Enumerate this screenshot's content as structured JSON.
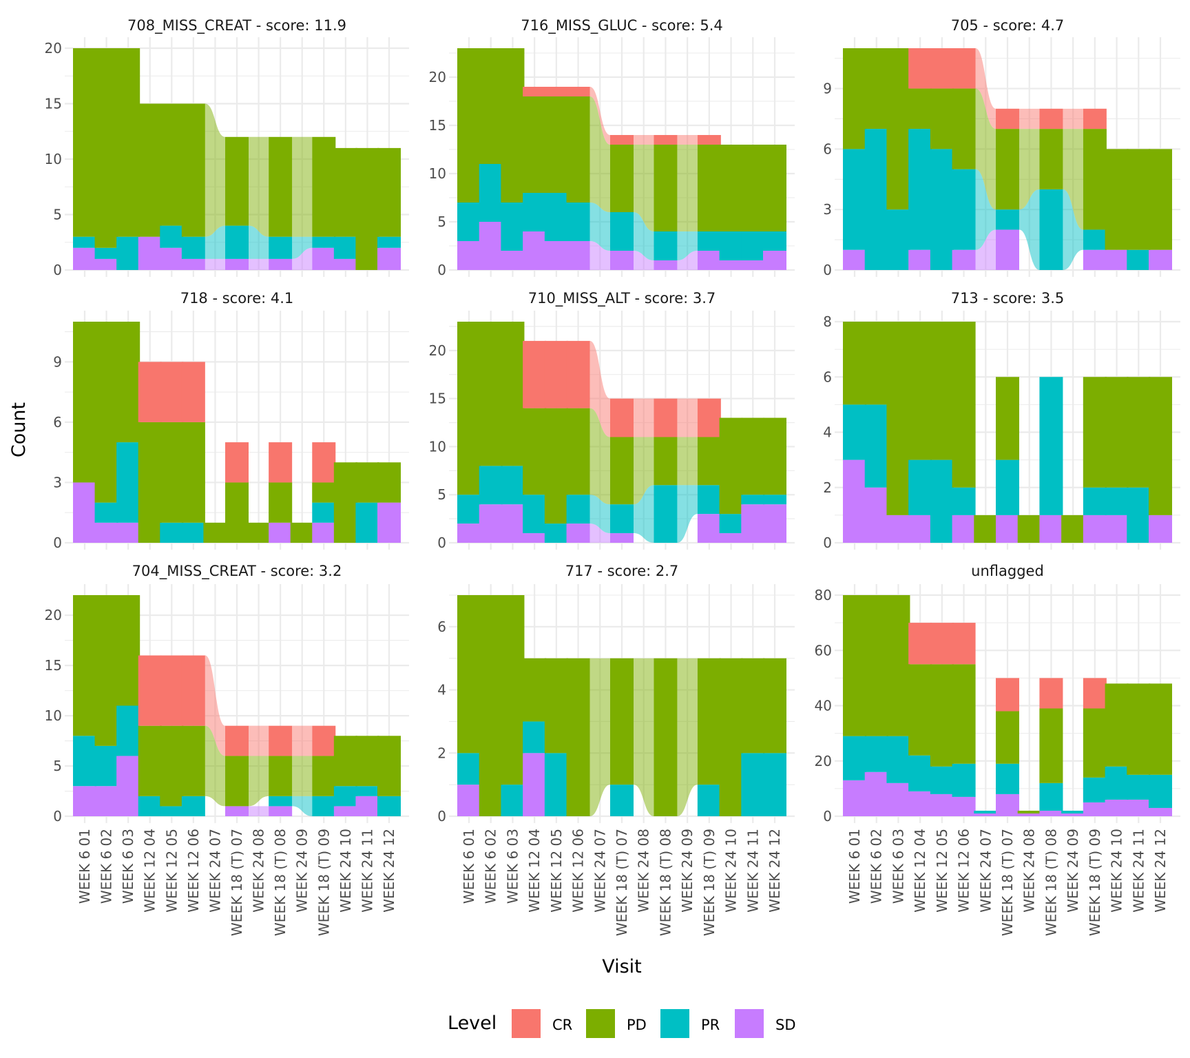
{
  "chart_data": {
    "type": "alluvial",
    "xlabel": "Visit",
    "ylabel": "Count",
    "legend": {
      "title": "Level",
      "position": "bottom",
      "entries": [
        {
          "name": "CR",
          "color": "#F8766D"
        },
        {
          "name": "PD",
          "color": "#7CAE00"
        },
        {
          "name": "PR",
          "color": "#00BFC4"
        },
        {
          "name": "SD",
          "color": "#C77CFF"
        }
      ]
    },
    "levels": [
      "SD",
      "PR",
      "PD",
      "CR"
    ],
    "visits": [
      "WEEK 6 01",
      "WEEK 6 02",
      "WEEK 6 03",
      "WEEK 12 04",
      "WEEK 12 05",
      "WEEK 12 06",
      "WEEK 24 07",
      "WEEK 18 (T) 07",
      "WEEK 24 08",
      "WEEK 18 (T) 08",
      "WEEK 24 09",
      "WEEK 18 (T) 09",
      "WEEK 24 10",
      "WEEK 24 11",
      "WEEK 24 12"
    ],
    "panels": [
      {
        "title": "708_MISS_CREAT - score: 11.9",
        "ylim": [
          0,
          20
        ],
        "yticks": [
          0,
          5,
          10,
          15,
          20
        ],
        "bars": [
          {
            "visit": 0,
            "SD": 2,
            "PR": 1,
            "PD": 17,
            "CR": 0
          },
          {
            "visit": 1,
            "SD": 1,
            "PR": 1,
            "PD": 18,
            "CR": 0
          },
          {
            "visit": 2,
            "SD": 0,
            "PR": 3,
            "PD": 17,
            "CR": 0
          },
          {
            "visit": 3,
            "SD": 3,
            "PR": 0,
            "PD": 12,
            "CR": 0
          },
          {
            "visit": 4,
            "SD": 2,
            "PR": 2,
            "PD": 11,
            "CR": 0
          },
          {
            "visit": 5,
            "SD": 1,
            "PR": 2,
            "PD": 12,
            "CR": 0
          },
          {
            "visit": 7,
            "SD": 1,
            "PR": 3,
            "PD": 8,
            "CR": 0
          },
          {
            "visit": 9,
            "SD": 1,
            "PR": 2,
            "PD": 9,
            "CR": 0
          },
          {
            "visit": 11,
            "SD": 2,
            "PR": 1,
            "PD": 9,
            "CR": 0
          },
          {
            "visit": 12,
            "SD": 1,
            "PR": 2,
            "PD": 8,
            "CR": 0
          },
          {
            "visit": 13,
            "SD": 0,
            "PR": 0,
            "PD": 11,
            "CR": 0
          },
          {
            "visit": 14,
            "SD": 2,
            "PR": 1,
            "PD": 8,
            "CR": 0
          }
        ]
      },
      {
        "title": "716_MISS_GLUC - score: 5.4",
        "ylim": [
          0,
          23
        ],
        "yticks": [
          0,
          5,
          10,
          15,
          20
        ],
        "bars": [
          {
            "visit": 0,
            "SD": 3,
            "PR": 4,
            "PD": 16,
            "CR": 0
          },
          {
            "visit": 1,
            "SD": 5,
            "PR": 6,
            "PD": 12,
            "CR": 0
          },
          {
            "visit": 2,
            "SD": 2,
            "PR": 5,
            "PD": 16,
            "CR": 0
          },
          {
            "visit": 3,
            "SD": 4,
            "PR": 4,
            "PD": 10,
            "CR": 1
          },
          {
            "visit": 4,
            "SD": 3,
            "PR": 5,
            "PD": 10,
            "CR": 1
          },
          {
            "visit": 5,
            "SD": 3,
            "PR": 4,
            "PD": 11,
            "CR": 1
          },
          {
            "visit": 7,
            "SD": 2,
            "PR": 4,
            "PD": 7,
            "CR": 1
          },
          {
            "visit": 9,
            "SD": 1,
            "PR": 3,
            "PD": 9,
            "CR": 1
          },
          {
            "visit": 11,
            "SD": 2,
            "PR": 2,
            "PD": 9,
            "CR": 1
          },
          {
            "visit": 12,
            "SD": 1,
            "PR": 3,
            "PD": 9,
            "CR": 0
          },
          {
            "visit": 13,
            "SD": 1,
            "PR": 3,
            "PD": 9,
            "CR": 0
          },
          {
            "visit": 14,
            "SD": 2,
            "PR": 2,
            "PD": 9,
            "CR": 0
          }
        ]
      },
      {
        "title": "705 - score: 4.7",
        "ylim": [
          0,
          11
        ],
        "yticks": [
          0,
          3,
          6,
          9
        ],
        "bars": [
          {
            "visit": 0,
            "SD": 1,
            "PR": 5,
            "PD": 5,
            "CR": 0
          },
          {
            "visit": 1,
            "SD": 0,
            "PR": 7,
            "PD": 4,
            "CR": 0
          },
          {
            "visit": 2,
            "SD": 0,
            "PR": 3,
            "PD": 8,
            "CR": 0
          },
          {
            "visit": 3,
            "SD": 1,
            "PR": 6,
            "PD": 2,
            "CR": 2
          },
          {
            "visit": 4,
            "SD": 0,
            "PR": 6,
            "PD": 3,
            "CR": 2
          },
          {
            "visit": 5,
            "SD": 1,
            "PR": 4,
            "PD": 4,
            "CR": 2
          },
          {
            "visit": 7,
            "SD": 2,
            "PR": 1,
            "PD": 4,
            "CR": 1
          },
          {
            "visit": 9,
            "SD": 0,
            "PR": 4,
            "PD": 3,
            "CR": 1
          },
          {
            "visit": 11,
            "SD": 1,
            "PR": 1,
            "PD": 5,
            "CR": 1
          },
          {
            "visit": 12,
            "SD": 1,
            "PR": 0,
            "PD": 5,
            "CR": 0
          },
          {
            "visit": 13,
            "SD": 0,
            "PR": 1,
            "PD": 5,
            "CR": 0
          },
          {
            "visit": 14,
            "SD": 1,
            "PR": 0,
            "PD": 5,
            "CR": 0
          }
        ]
      },
      {
        "title": "718 - score: 4.1",
        "ylim": [
          0,
          11
        ],
        "yticks": [
          0,
          3,
          6,
          9
        ],
        "bars": [
          {
            "visit": 0,
            "SD": 3,
            "PR": 0,
            "PD": 8,
            "CR": 0
          },
          {
            "visit": 1,
            "SD": 1,
            "PR": 1,
            "PD": 9,
            "CR": 0
          },
          {
            "visit": 2,
            "SD": 1,
            "PR": 4,
            "PD": 6,
            "CR": 0
          },
          {
            "visit": 3,
            "SD": 0,
            "PR": 0,
            "PD": 6,
            "CR": 3
          },
          {
            "visit": 4,
            "SD": 0,
            "PR": 1,
            "PD": 5,
            "CR": 3
          },
          {
            "visit": 5,
            "SD": 0,
            "PR": 1,
            "PD": 5,
            "CR": 3
          },
          {
            "visit": 6,
            "SD": 0,
            "PR": 0,
            "PD": 1,
            "CR": 0
          },
          {
            "visit": 7,
            "SD": 0,
            "PR": 0,
            "PD": 3,
            "CR": 2
          },
          {
            "visit": 8,
            "SD": 0,
            "PR": 0,
            "PD": 1,
            "CR": 0
          },
          {
            "visit": 9,
            "SD": 1,
            "PR": 0,
            "PD": 2,
            "CR": 2
          },
          {
            "visit": 10,
            "SD": 0,
            "PR": 0,
            "PD": 1,
            "CR": 0
          },
          {
            "visit": 11,
            "SD": 1,
            "PR": 1,
            "PD": 1,
            "CR": 2
          },
          {
            "visit": 12,
            "SD": 0,
            "PR": 0,
            "PD": 4,
            "CR": 0
          },
          {
            "visit": 13,
            "SD": 0,
            "PR": 2,
            "PD": 2,
            "CR": 0
          },
          {
            "visit": 14,
            "SD": 2,
            "PR": 0,
            "PD": 2,
            "CR": 0
          }
        ]
      },
      {
        "title": "710_MISS_ALT - score: 3.7",
        "ylim": [
          0,
          23
        ],
        "yticks": [
          0,
          5,
          10,
          15,
          20
        ],
        "bars": [
          {
            "visit": 0,
            "SD": 2,
            "PR": 3,
            "PD": 18,
            "CR": 0
          },
          {
            "visit": 1,
            "SD": 4,
            "PR": 4,
            "PD": 15,
            "CR": 0
          },
          {
            "visit": 2,
            "SD": 4,
            "PR": 4,
            "PD": 15,
            "CR": 0
          },
          {
            "visit": 3,
            "SD": 1,
            "PR": 4,
            "PD": 9,
            "CR": 7
          },
          {
            "visit": 4,
            "SD": 0,
            "PR": 2,
            "PD": 12,
            "CR": 7
          },
          {
            "visit": 5,
            "SD": 2,
            "PR": 3,
            "PD": 9,
            "CR": 7
          },
          {
            "visit": 7,
            "SD": 1,
            "PR": 3,
            "PD": 7,
            "CR": 4
          },
          {
            "visit": 9,
            "SD": 0,
            "PR": 6,
            "PD": 5,
            "CR": 4
          },
          {
            "visit": 11,
            "SD": 3,
            "PR": 3,
            "PD": 5,
            "CR": 4
          },
          {
            "visit": 12,
            "SD": 1,
            "PR": 2,
            "PD": 10,
            "CR": 0
          },
          {
            "visit": 13,
            "SD": 4,
            "PR": 1,
            "PD": 8,
            "CR": 0
          },
          {
            "visit": 14,
            "SD": 4,
            "PR": 1,
            "PD": 8,
            "CR": 0
          }
        ]
      },
      {
        "title": "713 - score: 3.5",
        "ylim": [
          0,
          8
        ],
        "yticks": [
          0,
          2,
          4,
          6,
          8
        ],
        "bars": [
          {
            "visit": 0,
            "SD": 3,
            "PR": 2,
            "PD": 3,
            "CR": 0
          },
          {
            "visit": 1,
            "SD": 2,
            "PR": 3,
            "PD": 3,
            "CR": 0
          },
          {
            "visit": 2,
            "SD": 1,
            "PR": 0,
            "PD": 7,
            "CR": 0
          },
          {
            "visit": 3,
            "SD": 1,
            "PR": 2,
            "PD": 5,
            "CR": 0
          },
          {
            "visit": 4,
            "SD": 0,
            "PR": 3,
            "PD": 5,
            "CR": 0
          },
          {
            "visit": 5,
            "SD": 1,
            "PR": 1,
            "PD": 6,
            "CR": 0
          },
          {
            "visit": 6,
            "SD": 0,
            "PR": 0,
            "PD": 1,
            "CR": 0
          },
          {
            "visit": 7,
            "SD": 1,
            "PR": 2,
            "PD": 3,
            "CR": 0
          },
          {
            "visit": 8,
            "SD": 0,
            "PR": 0,
            "PD": 1,
            "CR": 0
          },
          {
            "visit": 9,
            "SD": 1,
            "PR": 5,
            "PD": 0,
            "CR": 0
          },
          {
            "visit": 10,
            "SD": 0,
            "PR": 0,
            "PD": 1,
            "CR": 0
          },
          {
            "visit": 11,
            "SD": 1,
            "PR": 1,
            "PD": 4,
            "CR": 0
          },
          {
            "visit": 12,
            "SD": 1,
            "PR": 1,
            "PD": 4,
            "CR": 0
          },
          {
            "visit": 13,
            "SD": 0,
            "PR": 2,
            "PD": 4,
            "CR": 0
          },
          {
            "visit": 14,
            "SD": 1,
            "PR": 0,
            "PD": 5,
            "CR": 0
          }
        ]
      },
      {
        "title": "704_MISS_CREAT - score: 3.2",
        "ylim": [
          0,
          22
        ],
        "yticks": [
          0,
          5,
          10,
          15,
          20
        ],
        "bars": [
          {
            "visit": 0,
            "SD": 3,
            "PR": 5,
            "PD": 14,
            "CR": 0
          },
          {
            "visit": 1,
            "SD": 3,
            "PR": 4,
            "PD": 15,
            "CR": 0
          },
          {
            "visit": 2,
            "SD": 6,
            "PR": 5,
            "PD": 11,
            "CR": 0
          },
          {
            "visit": 3,
            "SD": 0,
            "PR": 2,
            "PD": 7,
            "CR": 7
          },
          {
            "visit": 4,
            "SD": 0,
            "PR": 1,
            "PD": 8,
            "CR": 7
          },
          {
            "visit": 5,
            "SD": 0,
            "PR": 2,
            "PD": 7,
            "CR": 7
          },
          {
            "visit": 7,
            "SD": 1,
            "PR": 0,
            "PD": 5,
            "CR": 3
          },
          {
            "visit": 9,
            "SD": 1,
            "PR": 1,
            "PD": 4,
            "CR": 3
          },
          {
            "visit": 11,
            "SD": 0,
            "PR": 2,
            "PD": 4,
            "CR": 3
          },
          {
            "visit": 12,
            "SD": 1,
            "PR": 2,
            "PD": 5,
            "CR": 0
          },
          {
            "visit": 13,
            "SD": 2,
            "PR": 1,
            "PD": 5,
            "CR": 0
          },
          {
            "visit": 14,
            "SD": 0,
            "PR": 2,
            "PD": 6,
            "CR": 0
          }
        ]
      },
      {
        "title": "717 - score: 2.7",
        "ylim": [
          0,
          7
        ],
        "yticks": [
          0,
          2,
          4,
          6
        ],
        "bars": [
          {
            "visit": 0,
            "SD": 1,
            "PR": 1,
            "PD": 5,
            "CR": 0
          },
          {
            "visit": 1,
            "SD": 0,
            "PR": 0,
            "PD": 7,
            "CR": 0
          },
          {
            "visit": 2,
            "SD": 0,
            "PR": 1,
            "PD": 6,
            "CR": 0
          },
          {
            "visit": 3,
            "SD": 2,
            "PR": 1,
            "PD": 2,
            "CR": 0
          },
          {
            "visit": 4,
            "SD": 0,
            "PR": 2,
            "PD": 3,
            "CR": 0
          },
          {
            "visit": 5,
            "SD": 0,
            "PR": 0,
            "PD": 5,
            "CR": 0
          },
          {
            "visit": 7,
            "SD": 0,
            "PR": 1,
            "PD": 4,
            "CR": 0
          },
          {
            "visit": 9,
            "SD": 0,
            "PR": 0,
            "PD": 5,
            "CR": 0
          },
          {
            "visit": 11,
            "SD": 0,
            "PR": 1,
            "PD": 4,
            "CR": 0
          },
          {
            "visit": 12,
            "SD": 0,
            "PR": 0,
            "PD": 5,
            "CR": 0
          },
          {
            "visit": 13,
            "SD": 0,
            "PR": 2,
            "PD": 3,
            "CR": 0
          },
          {
            "visit": 14,
            "SD": 0,
            "PR": 2,
            "PD": 3,
            "CR": 0
          }
        ]
      },
      {
        "title": "unflagged",
        "ylim": [
          0,
          80
        ],
        "yticks": [
          0,
          20,
          40,
          60,
          80
        ],
        "bars": [
          {
            "visit": 0,
            "SD": 13,
            "PR": 16,
            "PD": 51,
            "CR": 0
          },
          {
            "visit": 1,
            "SD": 16,
            "PR": 13,
            "PD": 51,
            "CR": 0
          },
          {
            "visit": 2,
            "SD": 12,
            "PR": 17,
            "PD": 51,
            "CR": 0
          },
          {
            "visit": 3,
            "SD": 9,
            "PR": 13,
            "PD": 33,
            "CR": 15
          },
          {
            "visit": 4,
            "SD": 8,
            "PR": 10,
            "PD": 37,
            "CR": 15
          },
          {
            "visit": 5,
            "SD": 7,
            "PR": 12,
            "PD": 36,
            "CR": 15
          },
          {
            "visit": 6,
            "SD": 1,
            "PR": 1,
            "PD": 0,
            "CR": 0
          },
          {
            "visit": 7,
            "SD": 8,
            "PR": 11,
            "PD": 19,
            "CR": 12
          },
          {
            "visit": 8,
            "SD": 1,
            "PR": 0,
            "PD": 1,
            "CR": 0
          },
          {
            "visit": 9,
            "SD": 2,
            "PR": 10,
            "PD": 27,
            "CR": 11
          },
          {
            "visit": 10,
            "SD": 1,
            "PR": 1,
            "PD": 0,
            "CR": 0
          },
          {
            "visit": 11,
            "SD": 5,
            "PR": 9,
            "PD": 25,
            "CR": 11
          },
          {
            "visit": 12,
            "SD": 6,
            "PR": 12,
            "PD": 30,
            "CR": 0
          },
          {
            "visit": 13,
            "SD": 6,
            "PR": 9,
            "PD": 33,
            "CR": 0
          },
          {
            "visit": 14,
            "SD": 3,
            "PR": 12,
            "PD": 33,
            "CR": 0
          }
        ]
      }
    ]
  }
}
